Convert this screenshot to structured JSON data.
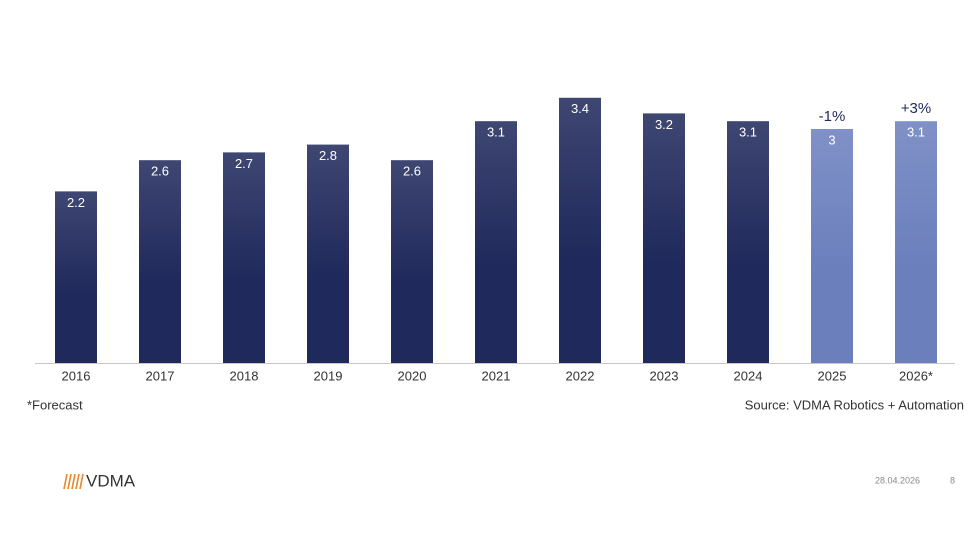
{
  "chart_data": {
    "type": "bar",
    "categories": [
      "2016",
      "2017",
      "2018",
      "2019",
      "2020",
      "2021",
      "2022",
      "2023",
      "2024",
      "2025",
      "2026*"
    ],
    "values": [
      2.2,
      2.6,
      2.7,
      2.8,
      2.6,
      3.1,
      3.4,
      3.2,
      3.1,
      3.0,
      3.1
    ],
    "colors": [
      "#1f295b",
      "#1f295b",
      "#1f295b",
      "#1f295b",
      "#1f295b",
      "#1f295b",
      "#1f295b",
      "#1f295b",
      "#1f295b",
      "#6b7fbd",
      "#6b7fbd"
    ],
    "annotations": [
      null,
      null,
      null,
      null,
      null,
      null,
      null,
      null,
      null,
      "-1%",
      "+3%"
    ],
    "footnote": "*Forecast",
    "source": "Source: VDMA Robotics + Automation"
  },
  "footer": {
    "logo": "VDMA",
    "date": "28.04.2026",
    "page": "8"
  }
}
